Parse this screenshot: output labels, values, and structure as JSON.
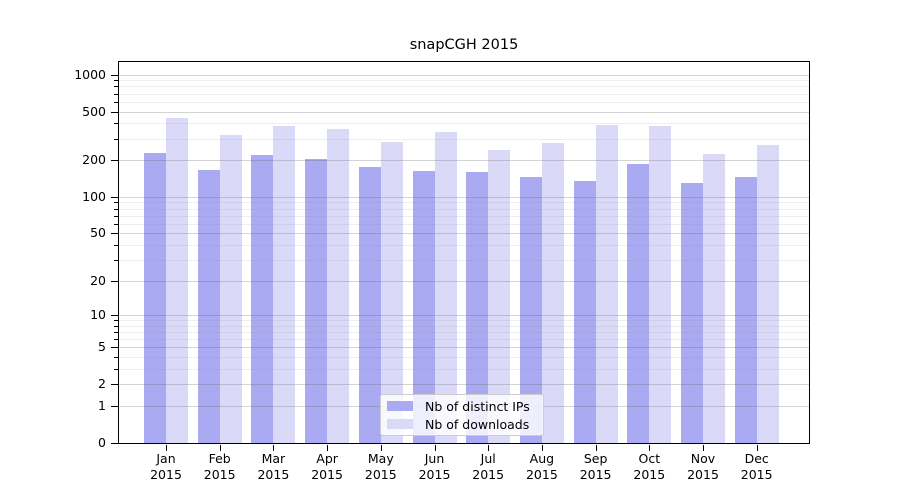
{
  "chart_data": {
    "type": "bar",
    "title": "snapCGH 2015",
    "categories": [
      "Jan 2015",
      "Feb 2015",
      "Mar 2015",
      "Apr 2015",
      "May 2015",
      "Jun 2015",
      "Jul 2015",
      "Aug 2015",
      "Sep 2015",
      "Oct 2015",
      "Nov 2015",
      "Dec 2015"
    ],
    "series": [
      {
        "name": "Nb of distinct IPs",
        "color": "#aaaaf2",
        "values": [
          230,
          166,
          221,
          205,
          177,
          164,
          160,
          146,
          136,
          186,
          130,
          147
        ]
      },
      {
        "name": "Nb of downloads",
        "color": "#dadaf8",
        "values": [
          440,
          320,
          382,
          359,
          280,
          343,
          243,
          274,
          389,
          379,
          225,
          266
        ]
      }
    ],
    "xlabel": "",
    "ylabel": "",
    "yscale": "log1p",
    "ylim": [
      0,
      1276
    ],
    "y_major_ticks": [
      0,
      1,
      2,
      5,
      10,
      20,
      50,
      100,
      200,
      500,
      1000
    ],
    "y_minor_ticks": [
      3,
      4,
      6,
      7,
      8,
      9,
      30,
      40,
      60,
      70,
      80,
      90,
      300,
      400,
      600,
      700,
      800,
      900
    ],
    "grid": true,
    "legend_position": "lower center"
  }
}
